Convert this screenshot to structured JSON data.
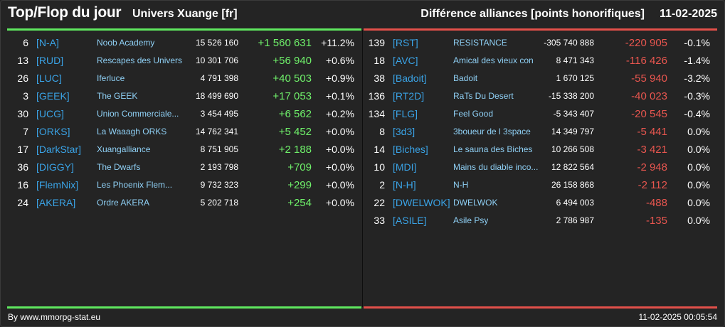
{
  "header": {
    "title": "Top/Flop du jour",
    "subtitle": "Univers Xuange [fr]",
    "metric": "Différence alliances [points honorifiques]",
    "date": "11-02-2025"
  },
  "colors": {
    "background": "#242424",
    "top_accent": "#5fe85f",
    "flop_accent": "#e3504a",
    "tag": "#3aa3e6",
    "name": "#8fd0f5"
  },
  "top": [
    {
      "rank": "6",
      "tag": "[N-A]",
      "name": "Noob Academy",
      "points": "15 526 160",
      "diff": "+1 560 631",
      "pct": "+11.2%"
    },
    {
      "rank": "13",
      "tag": "[RUD]",
      "name": "Rescapes des Univers",
      "points": "10 301 706",
      "diff": "+56 940",
      "pct": "+0.6%"
    },
    {
      "rank": "26",
      "tag": "[LUC]",
      "name": "Iferluce",
      "points": "4 791 398",
      "diff": "+40 503",
      "pct": "+0.9%"
    },
    {
      "rank": "3",
      "tag": "[GEEK]",
      "name": "The GEEK",
      "points": "18 499 690",
      "diff": "+17 053",
      "pct": "+0.1%"
    },
    {
      "rank": "30",
      "tag": "[UCG]",
      "name": "Union Commerciale...",
      "points": "3 454 495",
      "diff": "+6 562",
      "pct": "+0.2%"
    },
    {
      "rank": "7",
      "tag": "[ORKS]",
      "name": "La Waaagh ORKS",
      "points": "14 762 341",
      "diff": "+5 452",
      "pct": "+0.0%"
    },
    {
      "rank": "17",
      "tag": "[DarkStar]",
      "name": "Xuangalliance",
      "points": "8 751 905",
      "diff": "+2 188",
      "pct": "+0.0%"
    },
    {
      "rank": "36",
      "tag": "[DIGGY]",
      "name": "The Dwarfs",
      "points": "2 193 798",
      "diff": "+709",
      "pct": "+0.0%"
    },
    {
      "rank": "16",
      "tag": "[FlemNix]",
      "name": "Les Phoenix Flem...",
      "points": "9 732 323",
      "diff": "+299",
      "pct": "+0.0%"
    },
    {
      "rank": "24",
      "tag": "[AKERA]",
      "name": "Ordre AKERA",
      "points": "5 202 718",
      "diff": "+254",
      "pct": "+0.0%"
    }
  ],
  "flop": [
    {
      "rank": "139",
      "tag": "[RST]",
      "name": "RESISTANCE",
      "points": "-305 740 888",
      "diff": "-220 905",
      "pct": "-0.1%"
    },
    {
      "rank": "18",
      "tag": "[AVC]",
      "name": "Amical des vieux con",
      "points": "8 471 343",
      "diff": "-116 426",
      "pct": "-1.4%"
    },
    {
      "rank": "38",
      "tag": "[Badoit]",
      "name": "Badoit",
      "points": "1 670 125",
      "diff": "-55 940",
      "pct": "-3.2%"
    },
    {
      "rank": "136",
      "tag": "[RT2D]",
      "name": "RaTs Du Desert",
      "points": "-15 338 200",
      "diff": "-40 023",
      "pct": "-0.3%"
    },
    {
      "rank": "134",
      "tag": "[FLG]",
      "name": "Feel Good",
      "points": "-5 343 407",
      "diff": "-20 545",
      "pct": "-0.4%"
    },
    {
      "rank": "8",
      "tag": "[3d3]",
      "name": "3boueur de l 3space",
      "points": "14 349 797",
      "diff": "-5 441",
      "pct": "0.0%"
    },
    {
      "rank": "14",
      "tag": "[Biches]",
      "name": "Le sauna des Biches",
      "points": "10 266 508",
      "diff": "-3 421",
      "pct": "0.0%"
    },
    {
      "rank": "10",
      "tag": "[MDI]",
      "name": "Mains du diable inco...",
      "points": "12 822 564",
      "diff": "-2 948",
      "pct": "0.0%"
    },
    {
      "rank": "2",
      "tag": "[N-H]",
      "name": "N-H",
      "points": "26 158 868",
      "diff": "-2 112",
      "pct": "0.0%"
    },
    {
      "rank": "22",
      "tag": "[DWELWOK]",
      "name": "DWELWOK",
      "points": "6 494 003",
      "diff": "-488",
      "pct": "0.0%"
    },
    {
      "rank": "33",
      "tag": "[ASILE]",
      "name": "Asile Psy",
      "points": "2 786 987",
      "diff": "-135",
      "pct": "0.0%"
    }
  ],
  "footer": {
    "source": "By www.mmorpg-stat.eu",
    "timestamp": "11-02-2025 00:05:54"
  }
}
